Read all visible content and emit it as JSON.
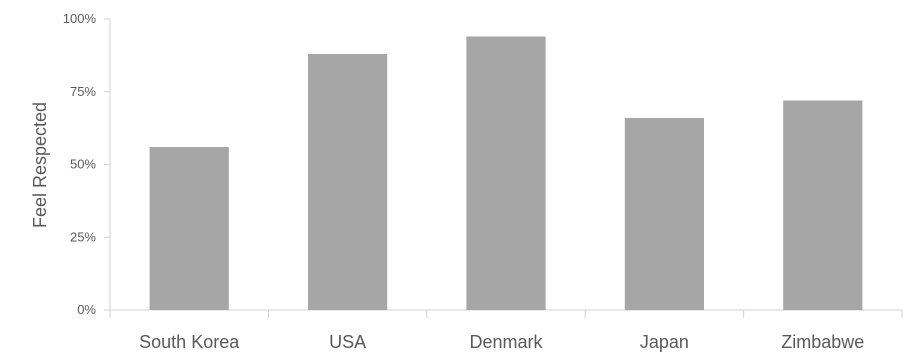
{
  "chart_data": {
    "type": "bar",
    "title": "",
    "xlabel": "",
    "ylabel": "Feel Respected",
    "categories": [
      "South Korea",
      "USA",
      "Denmark",
      "Japan",
      "Zimbabwe"
    ],
    "values": [
      56,
      88,
      94,
      66,
      72
    ],
    "ylim": [
      0,
      100
    ],
    "yticks": [
      0,
      25,
      50,
      75,
      100
    ],
    "ytick_labels": [
      "0%",
      "25%",
      "50%",
      "75%",
      "100%"
    ],
    "grid": false,
    "legend": "none",
    "bar_color": "#a6a6a6",
    "axis_color": "#d0d0d0",
    "text_color": "#595959"
  }
}
